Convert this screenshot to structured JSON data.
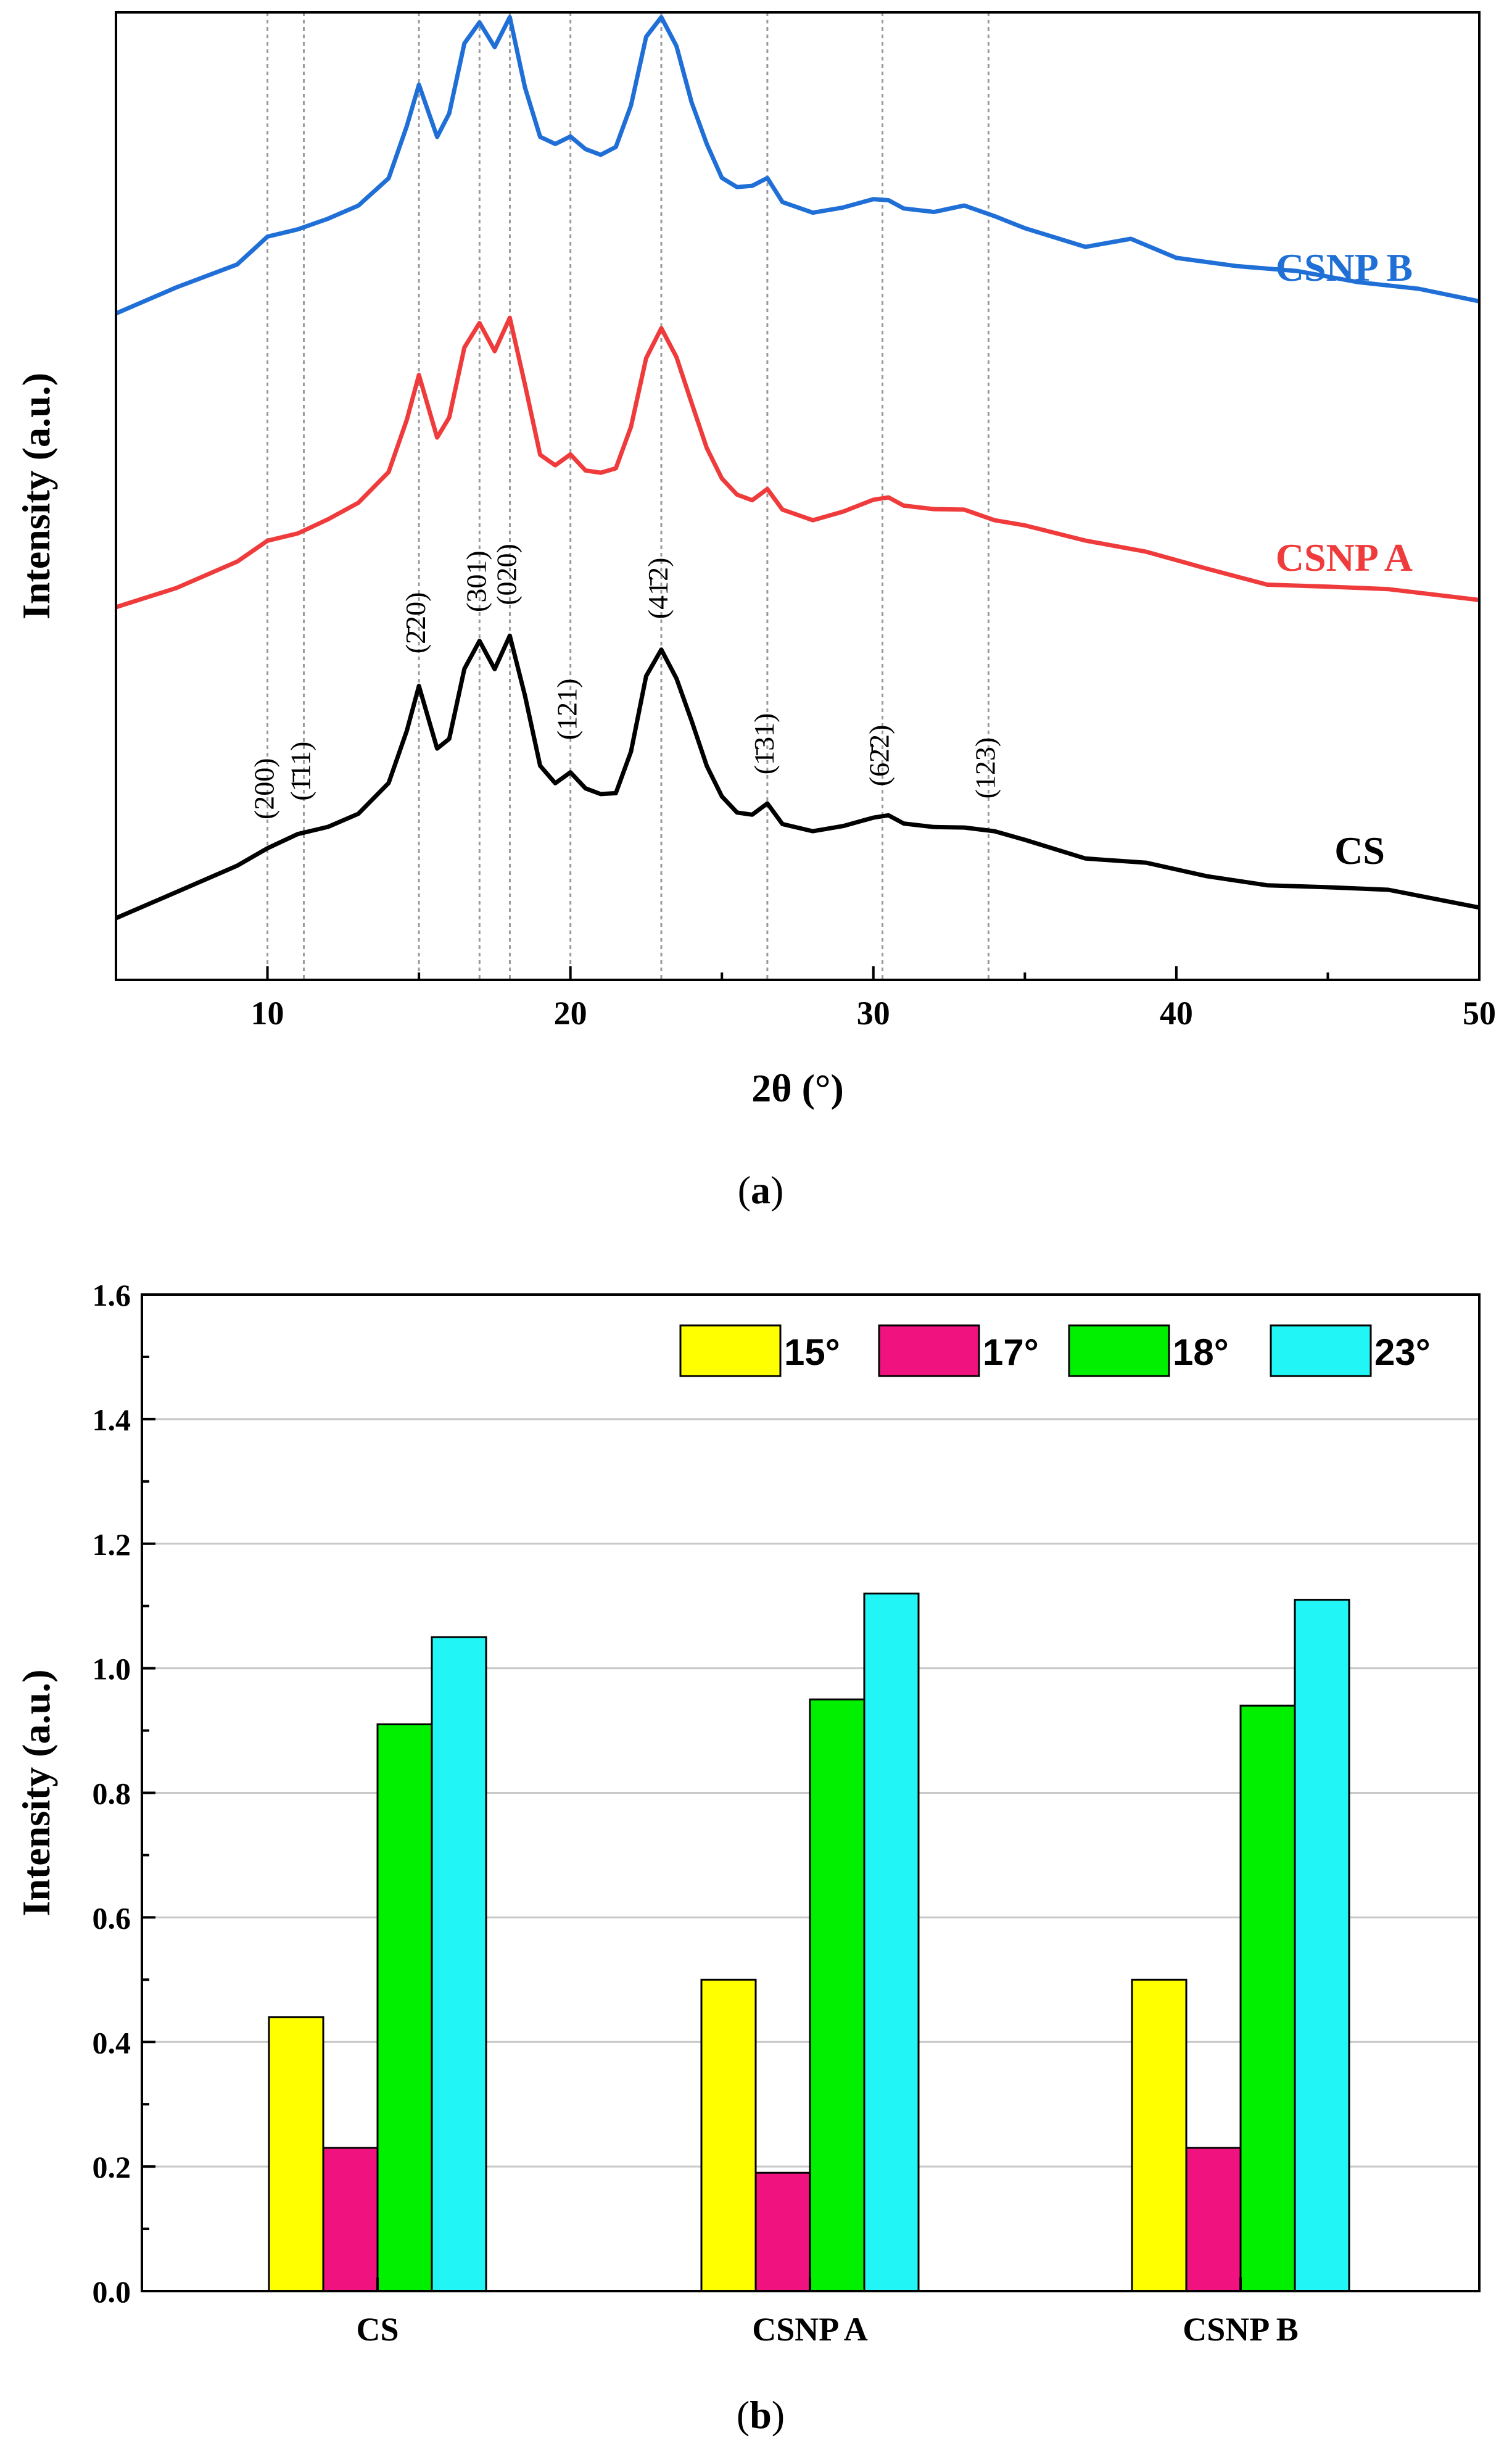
{
  "panel_labels": {
    "a": {
      "open": "(",
      "letter": "a",
      "close": ")"
    },
    "b": {
      "open": "(",
      "letter": "b",
      "close": ")"
    }
  },
  "colors": {
    "CS": "#000000",
    "CSNP A": "#ef3b3b",
    "CSNP B": "#1f6fd6",
    "bar_15": "#ffff00",
    "bar_17": "#f0127f",
    "bar_18": "#00f000",
    "bar_23": "#22f5f5"
  },
  "chart_data": [
    {
      "type": "line",
      "title": "",
      "xlabel": "2θ (°)",
      "ylabel": "Intensity (a.u.)",
      "xlim": [
        5,
        50
      ],
      "xticks": [
        10,
        20,
        30,
        40,
        50
      ],
      "yticks": [],
      "grid": false,
      "reference_lines": [
        10,
        11.2,
        15,
        17,
        18,
        20,
        23,
        26.5,
        30.3,
        33.8
      ],
      "plane_labels": [
        {
          "x": 10.0,
          "label": "(200)"
        },
        {
          "x": 11.2,
          "label": "(1̄11)"
        },
        {
          "x": 15.0,
          "label": "(2̄20)"
        },
        {
          "x": 17.0,
          "label": "(301)"
        },
        {
          "x": 18.0,
          "label": "(020)"
        },
        {
          "x": 20.0,
          "label": "(121)"
        },
        {
          "x": 23.0,
          "label": "(41̄2)"
        },
        {
          "x": 26.5,
          "label": "(1̄31)"
        },
        {
          "x": 30.3,
          "label": "(62̄2)"
        },
        {
          "x": 33.8,
          "label": "(123)"
        }
      ],
      "series": [
        {
          "name": "CS",
          "offset": 0.0,
          "points": [
            [
              5,
              0.0
            ],
            [
              7,
              0.08
            ],
            [
              9,
              0.16
            ],
            [
              10,
              0.2
            ],
            [
              11,
              0.25
            ],
            [
              12,
              0.27
            ],
            [
              13,
              0.3
            ],
            [
              14,
              0.4
            ],
            [
              14.6,
              0.55
            ],
            [
              15,
              0.68
            ],
            [
              15.6,
              0.5
            ],
            [
              16,
              0.52
            ],
            [
              16.5,
              0.72
            ],
            [
              17,
              0.8
            ],
            [
              17.5,
              0.72
            ],
            [
              18,
              0.82
            ],
            [
              18.5,
              0.65
            ],
            [
              19,
              0.45
            ],
            [
              19.5,
              0.4
            ],
            [
              20,
              0.43
            ],
            [
              20.5,
              0.38
            ],
            [
              21,
              0.36
            ],
            [
              21.5,
              0.36
            ],
            [
              22,
              0.48
            ],
            [
              22.5,
              0.7
            ],
            [
              23,
              0.78
            ],
            [
              23.5,
              0.7
            ],
            [
              24,
              0.58
            ],
            [
              24.5,
              0.45
            ],
            [
              25,
              0.36
            ],
            [
              25.5,
              0.31
            ],
            [
              26,
              0.3
            ],
            [
              26.5,
              0.33
            ],
            [
              27,
              0.27
            ],
            [
              28,
              0.26
            ],
            [
              29,
              0.27
            ],
            [
              30,
              0.29
            ],
            [
              30.5,
              0.3
            ],
            [
              31,
              0.28
            ],
            [
              32,
              0.27
            ],
            [
              33,
              0.26
            ],
            [
              34,
              0.26
            ],
            [
              35,
              0.23
            ],
            [
              37,
              0.18
            ],
            [
              39,
              0.17
            ],
            [
              41,
              0.13
            ],
            [
              43,
              0.1
            ],
            [
              45,
              0.09
            ],
            [
              47,
              0.08
            ],
            [
              50,
              0.04
            ]
          ]
        },
        {
          "name": "CSNP A",
          "offset": 0.9,
          "points": [
            [
              5,
              0.0
            ],
            [
              7,
              0.06
            ],
            [
              9,
              0.14
            ],
            [
              10,
              0.19
            ],
            [
              11,
              0.22
            ],
            [
              12,
              0.26
            ],
            [
              13,
              0.3
            ],
            [
              14,
              0.4
            ],
            [
              14.6,
              0.55
            ],
            [
              15,
              0.68
            ],
            [
              15.6,
              0.5
            ],
            [
              16,
              0.55
            ],
            [
              16.5,
              0.75
            ],
            [
              17,
              0.82
            ],
            [
              17.5,
              0.74
            ],
            [
              18,
              0.84
            ],
            [
              18.5,
              0.65
            ],
            [
              19,
              0.45
            ],
            [
              19.5,
              0.42
            ],
            [
              20,
              0.45
            ],
            [
              20.5,
              0.4
            ],
            [
              21,
              0.39
            ],
            [
              21.5,
              0.4
            ],
            [
              22,
              0.52
            ],
            [
              22.5,
              0.72
            ],
            [
              23,
              0.81
            ],
            [
              23.5,
              0.73
            ],
            [
              24,
              0.6
            ],
            [
              24.5,
              0.47
            ],
            [
              25,
              0.38
            ],
            [
              25.5,
              0.33
            ],
            [
              26,
              0.31
            ],
            [
              26.5,
              0.34
            ],
            [
              27,
              0.28
            ],
            [
              28,
              0.26
            ],
            [
              29,
              0.28
            ],
            [
              30,
              0.31
            ],
            [
              30.5,
              0.32
            ],
            [
              31,
              0.3
            ],
            [
              32,
              0.29
            ],
            [
              33,
              0.28
            ],
            [
              34,
              0.26
            ],
            [
              35,
              0.24
            ],
            [
              37,
              0.2
            ],
            [
              39,
              0.17
            ],
            [
              41,
              0.12
            ],
            [
              43,
              0.07
            ],
            [
              45,
              0.06
            ],
            [
              47,
              0.05
            ],
            [
              50,
              0.03
            ]
          ]
        },
        {
          "name": "CSNP B",
          "offset": 1.75,
          "points": [
            [
              5,
              0.0
            ],
            [
              7,
              0.08
            ],
            [
              9,
              0.15
            ],
            [
              10,
              0.22
            ],
            [
              11,
              0.25
            ],
            [
              12,
              0.28
            ],
            [
              13,
              0.31
            ],
            [
              14,
              0.4
            ],
            [
              14.6,
              0.55
            ],
            [
              15,
              0.67
            ],
            [
              15.6,
              0.52
            ],
            [
              16,
              0.58
            ],
            [
              16.5,
              0.78
            ],
            [
              17,
              0.84
            ],
            [
              17.5,
              0.77
            ],
            [
              18,
              0.86
            ],
            [
              18.5,
              0.66
            ],
            [
              19,
              0.52
            ],
            [
              19.5,
              0.5
            ],
            [
              20,
              0.52
            ],
            [
              20.5,
              0.48
            ],
            [
              21,
              0.46
            ],
            [
              21.5,
              0.48
            ],
            [
              22,
              0.6
            ],
            [
              22.5,
              0.8
            ],
            [
              23,
              0.86
            ],
            [
              23.5,
              0.78
            ],
            [
              24,
              0.62
            ],
            [
              24.5,
              0.5
            ],
            [
              25,
              0.4
            ],
            [
              25.5,
              0.37
            ],
            [
              26,
              0.37
            ],
            [
              26.5,
              0.39
            ],
            [
              27,
              0.32
            ],
            [
              28,
              0.3
            ],
            [
              29,
              0.31
            ],
            [
              30,
              0.33
            ],
            [
              30.5,
              0.33
            ],
            [
              31,
              0.31
            ],
            [
              32,
              0.3
            ],
            [
              33,
              0.31
            ],
            [
              34,
              0.29
            ],
            [
              35,
              0.25
            ],
            [
              37,
              0.2
            ],
            [
              38.5,
              0.22
            ],
            [
              40,
              0.16
            ],
            [
              42,
              0.14
            ],
            [
              44,
              0.13
            ],
            [
              46,
              0.1
            ],
            [
              48,
              0.08
            ],
            [
              50,
              0.04
            ]
          ]
        }
      ],
      "series_labels": [
        {
          "name": "CSNP B",
          "text": "CSNP B"
        },
        {
          "name": "CSNP A",
          "text": "CSNP A"
        },
        {
          "name": "CS",
          "text": "CS"
        }
      ]
    },
    {
      "type": "bar",
      "title": "",
      "xlabel": "",
      "ylabel": "Intensity (a.u.)",
      "ylim": [
        0.0,
        1.6
      ],
      "yticks": [
        0.0,
        0.2,
        0.4,
        0.6,
        0.8,
        1.0,
        1.2,
        1.4,
        1.6
      ],
      "ytick_labels": [
        "0.0",
        "0.2",
        "0.4",
        "0.6",
        "0.8",
        "1.0",
        "1.2",
        "1.4",
        "1.6"
      ],
      "grid": true,
      "legend_position": "top-right",
      "categories": [
        "CS",
        "CSNP A",
        "CSNP B"
      ],
      "series": [
        {
          "name": "15°",
          "color": "#ffff00",
          "values": [
            0.44,
            0.5,
            0.5
          ]
        },
        {
          "name": "17°",
          "color": "#f0127f",
          "values": [
            0.23,
            0.19,
            0.23
          ]
        },
        {
          "name": "18°",
          "color": "#00f000",
          "values": [
            0.91,
            0.95,
            0.94
          ]
        },
        {
          "name": "23°",
          "color": "#22f5f5",
          "values": [
            1.05,
            1.12,
            1.11
          ]
        }
      ]
    }
  ]
}
